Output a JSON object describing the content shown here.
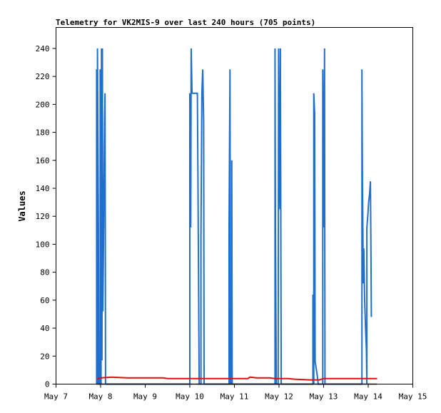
{
  "chart_data": {
    "type": "line",
    "title": "Telemetry for VK2MIS-9 over last 240 hours (705 points)",
    "xlabel": "",
    "ylabel": "Values",
    "x_tick_labels": [
      "May 7",
      "May 8",
      "May 9",
      "May 10",
      "May 11",
      "May 12",
      "May 13",
      "May 14",
      "May 15"
    ],
    "xlim": [
      7,
      15
    ],
    "ylim": [
      0,
      255
    ],
    "y_ticks": [
      0,
      20,
      40,
      60,
      80,
      100,
      120,
      140,
      160,
      180,
      200,
      220,
      240
    ],
    "grid": false,
    "legend": "none",
    "colors": {
      "series_blue": "#1f6fcf",
      "series_red": "#dd1111",
      "series_black": "#000000"
    },
    "series": [
      {
        "color": "#1f6fcf",
        "points": [
          [
            7.91,
            0
          ],
          [
            7.91,
            225
          ],
          [
            7.93,
            0
          ],
          [
            7.93,
            240
          ],
          [
            7.95,
            112
          ],
          [
            7.96,
            0
          ],
          [
            7.97,
            0
          ],
          [
            7.99,
            0
          ],
          [
            7.99,
            225
          ],
          [
            8.01,
            0
          ],
          [
            8.02,
            240
          ],
          [
            8.03,
            17
          ],
          [
            8.04,
            240
          ],
          [
            8.05,
            52
          ],
          [
            8.06,
            88
          ],
          [
            8.07,
            121
          ],
          [
            8.08,
            155
          ],
          [
            8.09,
            190
          ],
          [
            8.1,
            208
          ],
          [
            8.11,
            0
          ],
          [
            10.0,
            0
          ],
          [
            10.0,
            208
          ],
          [
            10.02,
            112
          ],
          [
            10.03,
            240
          ],
          [
            10.05,
            208
          ],
          [
            10.17,
            208
          ],
          [
            10.18,
            155
          ],
          [
            10.2,
            52
          ],
          [
            10.21,
            0
          ],
          [
            10.25,
            0
          ],
          [
            10.25,
            104
          ],
          [
            10.27,
            208
          ],
          [
            10.29,
            225
          ],
          [
            10.31,
            188
          ],
          [
            10.32,
            0
          ],
          [
            10.88,
            0
          ],
          [
            10.88,
            112
          ],
          [
            10.9,
            225
          ],
          [
            10.91,
            0
          ],
          [
            10.94,
            0
          ],
          [
            10.94,
            160
          ],
          [
            10.95,
            0
          ],
          [
            11.91,
            0
          ],
          [
            11.91,
            240
          ],
          [
            11.92,
            112
          ],
          [
            11.94,
            0
          ],
          [
            11.98,
            0
          ],
          [
            11.99,
            240
          ],
          [
            12.01,
            145
          ],
          [
            12.02,
            125
          ],
          [
            12.03,
            240
          ],
          [
            12.05,
            0
          ],
          [
            12.76,
            0
          ],
          [
            12.76,
            64
          ],
          [
            12.78,
            0
          ],
          [
            12.78,
            208
          ],
          [
            12.8,
            193
          ],
          [
            12.81,
            16
          ],
          [
            12.85,
            8
          ],
          [
            12.88,
            0
          ],
          [
            12.98,
            0
          ],
          [
            12.98,
            225
          ],
          [
            13.0,
            112
          ],
          [
            13.02,
            240
          ],
          [
            13.03,
            0
          ],
          [
            13.86,
            0
          ],
          [
            13.86,
            225
          ],
          [
            13.87,
            145
          ],
          [
            13.88,
            112
          ],
          [
            13.89,
            72
          ],
          [
            13.9,
            97
          ],
          [
            13.92,
            60
          ],
          [
            13.94,
            40
          ],
          [
            13.96,
            24
          ],
          [
            13.97,
            0
          ],
          [
            13.97,
            112
          ],
          [
            13.99,
            120
          ],
          [
            14.01,
            130
          ],
          [
            14.03,
            136
          ],
          [
            14.05,
            145
          ],
          [
            14.06,
            97
          ],
          [
            14.07,
            48
          ]
        ]
      },
      {
        "color": "#dd1111",
        "points": [
          [
            7.92,
            3.5
          ],
          [
            8.0,
            4.5
          ],
          [
            8.25,
            5
          ],
          [
            8.6,
            4.5
          ],
          [
            9.4,
            4.5
          ],
          [
            9.5,
            4
          ],
          [
            10.4,
            4
          ],
          [
            11.3,
            4
          ],
          [
            11.35,
            5
          ],
          [
            11.5,
            4.5
          ],
          [
            11.8,
            4.5
          ],
          [
            11.9,
            4
          ],
          [
            12.2,
            4
          ],
          [
            12.35,
            3.5
          ],
          [
            12.7,
            3
          ],
          [
            12.9,
            3
          ],
          [
            13.0,
            4
          ],
          [
            13.5,
            4
          ],
          [
            14.1,
            4
          ],
          [
            14.2,
            4
          ]
        ]
      },
      {
        "color": "#000000",
        "points": [
          [
            7.9,
            0
          ],
          [
            14.2,
            0
          ]
        ]
      }
    ]
  }
}
